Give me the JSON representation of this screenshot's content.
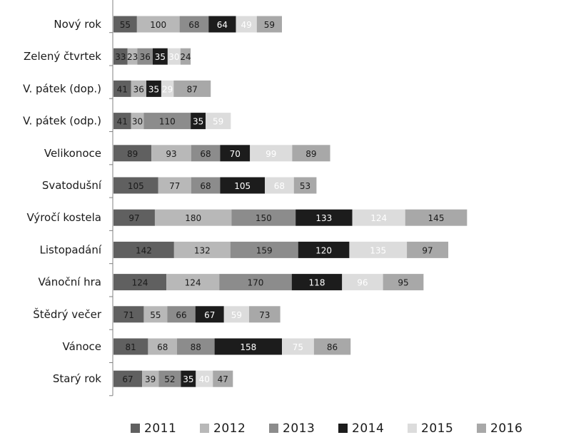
{
  "chart_data": {
    "type": "bar",
    "orientation": "horizontal",
    "stacked": true,
    "categories": [
      "Nový rok",
      "Zelený čtvrtek",
      "V. pátek (dop.)",
      "V. pátek (odp.)",
      "Velikonoce",
      "Svatodušní",
      "Výročí kostela",
      "Listopadání",
      "Vánoční hra",
      "Štědrý večer",
      "Vánoce",
      "Starý rok"
    ],
    "series": [
      {
        "name": "2011",
        "color": "#606060",
        "label_color": "#1a1a1a",
        "values": [
          55,
          33,
          41,
          41,
          89,
          105,
          97,
          142,
          124,
          71,
          81,
          67
        ]
      },
      {
        "name": "2012",
        "color": "#b8b8b8",
        "label_color": "#1a1a1a",
        "values": [
          100,
          23,
          36,
          30,
          93,
          77,
          180,
          132,
          124,
          55,
          68,
          39
        ]
      },
      {
        "name": "2013",
        "color": "#8c8c8c",
        "label_color": "#1a1a1a",
        "values": [
          68,
          36,
          null,
          110,
          68,
          68,
          150,
          159,
          170,
          66,
          88,
          52
        ]
      },
      {
        "name": "2014",
        "color": "#1c1c1c",
        "label_color": "#ffffff",
        "values": [
          64,
          35,
          35,
          35,
          70,
          105,
          133,
          120,
          118,
          67,
          158,
          35
        ]
      },
      {
        "name": "2015",
        "color": "#dcdcdc",
        "label_color": "#ffffff",
        "values": [
          49,
          30,
          29,
          59,
          99,
          68,
          124,
          135,
          96,
          59,
          75,
          40
        ]
      },
      {
        "name": "2016",
        "color": "#a8a8a8",
        "label_color": "#1a1a1a",
        "values": [
          59,
          24,
          87,
          null,
          89,
          53,
          145,
          97,
          95,
          73,
          86,
          47
        ]
      }
    ],
    "title": "",
    "xlabel": "",
    "ylabel": "",
    "grid": false,
    "legend_position": "bottom"
  }
}
